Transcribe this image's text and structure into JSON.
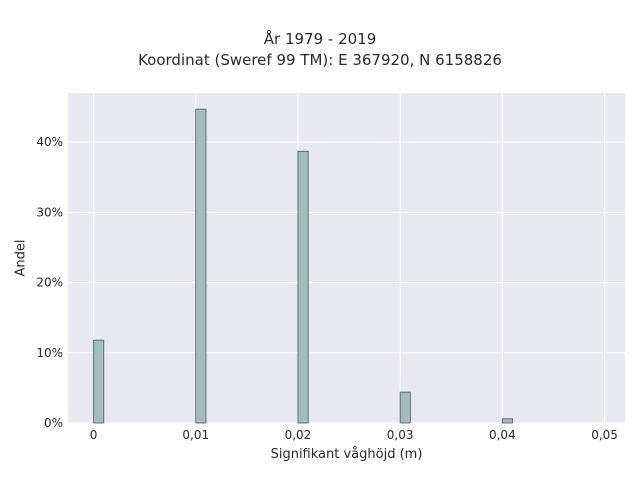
{
  "chart_data": {
    "type": "bar",
    "title": [
      "År 1979 - 2019",
      "Koordinat (Sweref 99 TM): E 367920, N 6158826"
    ],
    "xlabel": "Signifikant våghöjd (m)",
    "ylabel": "Andel",
    "x_ticks": [
      "0",
      "0,01",
      "0,02",
      "0,03",
      "0,04",
      "0,05"
    ],
    "x_tick_values": [
      0,
      0.01,
      0.02,
      0.03,
      0.04,
      0.05
    ],
    "y_ticks": [
      "0%",
      "10%",
      "20%",
      "30%",
      "40%"
    ],
    "y_tick_values": [
      0,
      10,
      20,
      30,
      40
    ],
    "xlim": [
      -0.0025,
      0.052
    ],
    "ylim": [
      0,
      47
    ],
    "bars": [
      {
        "x": 0.0,
        "value": 11.8
      },
      {
        "x": 0.01,
        "value": 44.7
      },
      {
        "x": 0.02,
        "value": 38.7
      },
      {
        "x": 0.03,
        "value": 4.4
      },
      {
        "x": 0.04,
        "value": 0.6
      }
    ],
    "bar_width": 0.001,
    "grid": true,
    "colors": {
      "bar_fill": "#a3bcbc",
      "bar_stroke": "#4a5a5a",
      "plot_background": "#e8e8f0",
      "grid": "#ffffff"
    }
  }
}
